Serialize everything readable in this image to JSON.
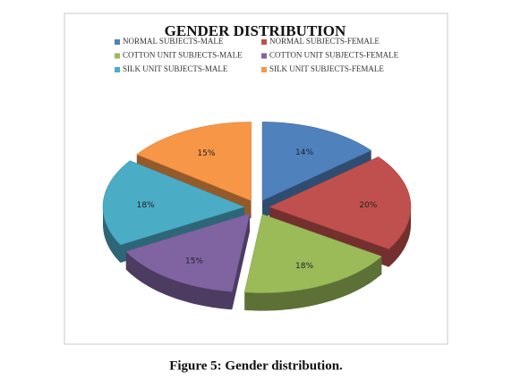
{
  "chart_data": {
    "type": "pie",
    "title": "GENDER DISTRIBUTION",
    "categories": [
      "NORMAL SUBJECTS-MALE",
      "NORMAL SUBJECTS-FEMALE",
      "COTTON UNIT SUBJECTS-MALE",
      "COTTON UNIT SUBJECTS-FEMALE",
      "SILK UNIT SUBJECTS-MALE",
      "SILK UNIT SUBJECTS-FEMALE"
    ],
    "values": [
      14,
      20,
      18,
      15,
      18,
      15
    ],
    "value_labels": [
      "14%",
      "20%",
      "18%",
      "15%",
      "18%",
      "15%"
    ],
    "colors": [
      "#4f81bd",
      "#c0504d",
      "#9bbb59",
      "#8064a2",
      "#4bacc6",
      "#f79646"
    ],
    "legend": "top"
  },
  "caption": "Figure 5: Gender distribution."
}
